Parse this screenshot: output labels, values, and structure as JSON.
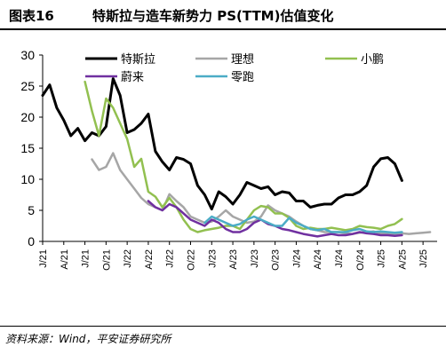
{
  "figure": {
    "label": "图表16",
    "title": "特斯拉与造车新势力 PS(TTM)估值变化",
    "source": "资料来源：Wind，平安证券研究所"
  },
  "chart_data": {
    "type": "line",
    "title": "特斯拉与造车新势力 PS(TTM)估值变化",
    "xlabel": "",
    "ylabel": "",
    "ylim": [
      0,
      30
    ],
    "yticks": [
      0,
      5,
      10,
      15,
      20,
      25,
      30
    ],
    "xlim": [
      "2021-01",
      "2025-09"
    ],
    "x_tick_labels": [
      "J/21",
      "A/21",
      "J/21",
      "O/21",
      "J/22",
      "A/22",
      "J/22",
      "O/22",
      "J/23",
      "A/23",
      "J/23",
      "O/23",
      "J/24",
      "A/24",
      "J/24",
      "O/24",
      "J/25",
      "A/25",
      "J/25"
    ],
    "x_tick_dates": [
      "2021-01",
      "2021-04",
      "2021-07",
      "2021-10",
      "2022-01",
      "2022-04",
      "2022-07",
      "2022-10",
      "2023-01",
      "2023-04",
      "2023-07",
      "2023-10",
      "2024-01",
      "2024-04",
      "2024-07",
      "2024-10",
      "2025-01",
      "2025-04",
      "2025-07"
    ],
    "grid": false,
    "legend_position": "top",
    "series": [
      {
        "name": "特斯拉",
        "color": "#000000",
        "points": [
          [
            "2021-01-01",
            23.5
          ],
          [
            "2021-02-01",
            25.2
          ],
          [
            "2021-03-01",
            21.5
          ],
          [
            "2021-04-01",
            19.5
          ],
          [
            "2021-05-01",
            17.0
          ],
          [
            "2021-06-01",
            18.2
          ],
          [
            "2021-07-01",
            16.2
          ],
          [
            "2021-08-01",
            17.5
          ],
          [
            "2021-09-01",
            17.0
          ],
          [
            "2021-10-01",
            18.5
          ],
          [
            "2021-11-01",
            26.2
          ],
          [
            "2021-12-01",
            23.5
          ],
          [
            "2022-01-01",
            17.5
          ],
          [
            "2022-02-01",
            18.0
          ],
          [
            "2022-03-01",
            19.0
          ],
          [
            "2022-04-01",
            20.5
          ],
          [
            "2022-05-01",
            14.5
          ],
          [
            "2022-06-01",
            12.8
          ],
          [
            "2022-07-01",
            11.5
          ],
          [
            "2022-08-01",
            13.5
          ],
          [
            "2022-09-01",
            13.2
          ],
          [
            "2022-10-01",
            12.5
          ],
          [
            "2022-11-01",
            9.0
          ],
          [
            "2022-12-01",
            7.5
          ],
          [
            "2023-01-01",
            5.2
          ],
          [
            "2023-02-01",
            8.0
          ],
          [
            "2023-03-01",
            7.2
          ],
          [
            "2023-04-01",
            6.0
          ],
          [
            "2023-05-01",
            7.5
          ],
          [
            "2023-06-01",
            9.5
          ],
          [
            "2023-07-01",
            9.0
          ],
          [
            "2023-08-01",
            8.5
          ],
          [
            "2023-09-01",
            8.8
          ],
          [
            "2023-10-01",
            7.5
          ],
          [
            "2023-11-01",
            8.0
          ],
          [
            "2023-12-01",
            7.8
          ],
          [
            "2024-01-01",
            6.5
          ],
          [
            "2024-02-01",
            6.5
          ],
          [
            "2024-03-01",
            5.5
          ],
          [
            "2024-04-01",
            5.8
          ],
          [
            "2024-05-01",
            6.0
          ],
          [
            "2024-06-01",
            6.0
          ],
          [
            "2024-07-01",
            7.0
          ],
          [
            "2024-08-01",
            7.5
          ],
          [
            "2024-09-01",
            7.5
          ],
          [
            "2024-10-01",
            8.0
          ],
          [
            "2024-11-01",
            9.0
          ],
          [
            "2024-12-01",
            12.0
          ],
          [
            "2025-01-01",
            13.3
          ],
          [
            "2025-02-01",
            13.5
          ],
          [
            "2025-03-01",
            12.5
          ],
          [
            "2025-04-01",
            9.8
          ]
        ]
      },
      {
        "name": "理想",
        "color": "#a6a6a6",
        "points": [
          [
            "2021-08-01",
            13.2
          ],
          [
            "2021-09-01",
            11.5
          ],
          [
            "2021-10-01",
            12.0
          ],
          [
            "2021-11-01",
            14.2
          ],
          [
            "2021-12-01",
            11.5
          ],
          [
            "2022-01-01",
            10.0
          ],
          [
            "2022-02-01",
            8.5
          ],
          [
            "2022-03-01",
            7.0
          ],
          [
            "2022-04-01",
            6.0
          ],
          [
            "2022-05-01",
            5.5
          ],
          [
            "2022-06-01",
            5.0
          ],
          [
            "2022-07-01",
            7.6
          ],
          [
            "2022-08-01",
            6.5
          ],
          [
            "2022-09-01",
            5.5
          ],
          [
            "2022-10-01",
            4.0
          ],
          [
            "2022-11-01",
            3.5
          ],
          [
            "2022-12-01",
            3.0
          ],
          [
            "2023-01-01",
            3.2
          ],
          [
            "2023-02-01",
            4.0
          ],
          [
            "2023-03-01",
            5.0
          ],
          [
            "2023-04-01",
            4.0
          ],
          [
            "2023-05-01",
            3.5
          ],
          [
            "2023-06-01",
            3.0
          ],
          [
            "2023-07-01",
            3.2
          ],
          [
            "2023-08-01",
            4.0
          ],
          [
            "2023-09-01",
            5.8
          ],
          [
            "2023-10-01",
            5.0
          ],
          [
            "2023-11-01",
            4.5
          ],
          [
            "2023-12-01",
            4.0
          ],
          [
            "2024-01-01",
            3.2
          ],
          [
            "2024-02-01",
            2.5
          ],
          [
            "2024-03-01",
            2.0
          ],
          [
            "2024-04-01",
            1.8
          ],
          [
            "2024-05-01",
            1.5
          ],
          [
            "2024-06-01",
            1.5
          ],
          [
            "2024-07-01",
            1.5
          ],
          [
            "2024-08-01",
            1.3
          ],
          [
            "2024-09-01",
            1.2
          ],
          [
            "2024-10-01",
            1.4
          ],
          [
            "2024-11-01",
            1.5
          ],
          [
            "2024-12-01",
            1.6
          ],
          [
            "2025-01-01",
            1.3
          ],
          [
            "2025-02-01",
            1.2
          ],
          [
            "2025-03-01",
            1.2
          ],
          [
            "2025-04-01",
            1.3
          ],
          [
            "2025-05-01",
            1.2
          ],
          [
            "2025-06-01",
            1.3
          ],
          [
            "2025-07-01",
            1.4
          ],
          [
            "2025-08-01",
            1.5
          ]
        ]
      },
      {
        "name": "小鹏",
        "color": "#92c050",
        "points": [
          [
            "2021-07-01",
            25.7
          ],
          [
            "2021-08-01",
            21.0
          ],
          [
            "2021-09-01",
            17.0
          ],
          [
            "2021-10-01",
            23.0
          ],
          [
            "2021-11-01",
            21.5
          ],
          [
            "2021-12-01",
            19.0
          ],
          [
            "2022-01-01",
            16.5
          ],
          [
            "2022-02-01",
            12.0
          ],
          [
            "2022-03-01",
            13.3
          ],
          [
            "2022-04-01",
            8.0
          ],
          [
            "2022-05-01",
            7.2
          ],
          [
            "2022-06-01",
            5.5
          ],
          [
            "2022-07-01",
            7.0
          ],
          [
            "2022-08-01",
            5.5
          ],
          [
            "2022-09-01",
            3.5
          ],
          [
            "2022-10-01",
            2.0
          ],
          [
            "2022-11-01",
            1.5
          ],
          [
            "2022-12-01",
            1.8
          ],
          [
            "2023-01-01",
            2.0
          ],
          [
            "2023-02-01",
            2.2
          ],
          [
            "2023-03-01",
            2.5
          ],
          [
            "2023-04-01",
            2.5
          ],
          [
            "2023-05-01",
            2.0
          ],
          [
            "2023-06-01",
            3.5
          ],
          [
            "2023-07-01",
            5.0
          ],
          [
            "2023-08-01",
            5.7
          ],
          [
            "2023-09-01",
            5.5
          ],
          [
            "2023-10-01",
            4.5
          ],
          [
            "2023-11-01",
            4.5
          ],
          [
            "2023-12-01",
            3.8
          ],
          [
            "2024-01-01",
            2.5
          ],
          [
            "2024-02-01",
            2.0
          ],
          [
            "2024-03-01",
            2.2
          ],
          [
            "2024-04-01",
            2.0
          ],
          [
            "2024-05-01",
            2.0
          ],
          [
            "2024-06-01",
            2.2
          ],
          [
            "2024-07-01",
            2.0
          ],
          [
            "2024-08-01",
            1.8
          ],
          [
            "2024-09-01",
            2.0
          ],
          [
            "2024-10-01",
            2.5
          ],
          [
            "2024-11-01",
            2.3
          ],
          [
            "2024-12-01",
            2.2
          ],
          [
            "2025-01-01",
            2.0
          ],
          [
            "2025-02-01",
            2.5
          ],
          [
            "2025-03-01",
            2.8
          ],
          [
            "2025-04-01",
            3.6
          ]
        ]
      },
      {
        "name": "蔚来",
        "color": "#7030a0",
        "points": [
          [
            "2022-04-01",
            6.5
          ],
          [
            "2022-05-01",
            5.5
          ],
          [
            "2022-06-01",
            5.0
          ],
          [
            "2022-07-01",
            6.0
          ],
          [
            "2022-08-01",
            5.5
          ],
          [
            "2022-09-01",
            4.5
          ],
          [
            "2022-10-01",
            3.5
          ],
          [
            "2022-11-01",
            3.0
          ],
          [
            "2022-12-01",
            2.5
          ],
          [
            "2023-01-01",
            3.5
          ],
          [
            "2023-02-01",
            3.0
          ],
          [
            "2023-03-01",
            2.0
          ],
          [
            "2023-04-01",
            1.5
          ],
          [
            "2023-05-01",
            1.5
          ],
          [
            "2023-06-01",
            2.0
          ],
          [
            "2023-07-01",
            3.0
          ],
          [
            "2023-08-01",
            3.5
          ],
          [
            "2023-09-01",
            2.8
          ],
          [
            "2023-10-01",
            2.5
          ],
          [
            "2023-11-01",
            2.0
          ],
          [
            "2023-12-01",
            1.8
          ],
          [
            "2024-01-01",
            1.5
          ],
          [
            "2024-02-01",
            1.2
          ],
          [
            "2024-03-01",
            1.0
          ],
          [
            "2024-04-01",
            0.8
          ],
          [
            "2024-05-01",
            1.0
          ],
          [
            "2024-06-01",
            1.2
          ],
          [
            "2024-07-01",
            1.0
          ],
          [
            "2024-08-01",
            1.0
          ],
          [
            "2024-09-01",
            1.2
          ],
          [
            "2024-10-01",
            1.5
          ],
          [
            "2024-11-01",
            1.3
          ],
          [
            "2024-12-01",
            1.2
          ],
          [
            "2025-01-01",
            1.0
          ],
          [
            "2025-02-01",
            1.0
          ],
          [
            "2025-03-01",
            0.9
          ],
          [
            "2025-04-01",
            1.0
          ]
        ]
      },
      {
        "name": "零跑",
        "color": "#4bacc6",
        "points": [
          [
            "2022-12-01",
            3.0
          ],
          [
            "2023-01-01",
            4.0
          ],
          [
            "2023-02-01",
            3.5
          ],
          [
            "2023-03-01",
            3.0
          ],
          [
            "2023-04-01",
            2.5
          ],
          [
            "2023-05-01",
            2.8
          ],
          [
            "2023-06-01",
            3.5
          ],
          [
            "2023-07-01",
            4.0
          ],
          [
            "2023-08-01",
            3.5
          ],
          [
            "2023-09-01",
            3.0
          ],
          [
            "2023-10-01",
            2.5
          ],
          [
            "2023-11-01",
            2.5
          ],
          [
            "2023-12-01",
            3.8
          ],
          [
            "2024-01-01",
            3.0
          ],
          [
            "2024-02-01",
            2.5
          ],
          [
            "2024-03-01",
            2.0
          ],
          [
            "2024-04-01",
            1.8
          ],
          [
            "2024-05-01",
            2.0
          ],
          [
            "2024-06-01",
            1.5
          ],
          [
            "2024-07-01",
            1.5
          ],
          [
            "2024-08-01",
            1.5
          ],
          [
            "2024-09-01",
            1.8
          ],
          [
            "2024-10-01",
            2.0
          ],
          [
            "2024-11-01",
            1.6
          ],
          [
            "2024-12-01",
            1.5
          ],
          [
            "2025-01-01",
            1.6
          ],
          [
            "2025-02-01",
            1.5
          ],
          [
            "2025-03-01",
            1.4
          ],
          [
            "2025-04-01",
            1.5
          ]
        ]
      }
    ]
  }
}
